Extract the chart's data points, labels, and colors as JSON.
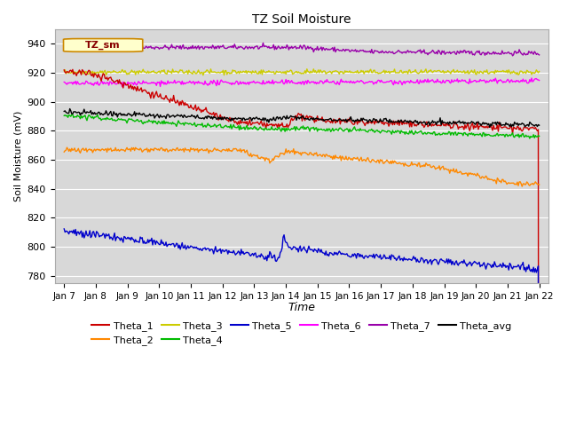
{
  "title": "TZ Soil Moisture",
  "xlabel": "Time",
  "ylabel": "Soil Moisture (mV)",
  "ylim": [
    775,
    950
  ],
  "background_color": "#d8d8d8",
  "legend_label": "TZ_sm",
  "x_tick_labels": [
    "Jan 7",
    "Jan 8",
    "Jan 9",
    "Jan 10",
    "Jan 11",
    "Jan 12",
    "Jan 13",
    "Jan 14",
    "Jan 15",
    "Jan 16",
    "Jan 17",
    "Jan 18",
    "Jan 19",
    "Jan 20",
    "Jan 21",
    "Jan 22"
  ],
  "grid_color": "#ffffff",
  "label_box_color": "#ffffcc",
  "label_box_text_color": "#880000",
  "label_box_border_color": "#cc8800",
  "series_colors": {
    "Theta_1": "#cc0000",
    "Theta_2": "#ff8800",
    "Theta_3": "#cccc00",
    "Theta_4": "#00bb00",
    "Theta_5": "#0000cc",
    "Theta_6": "#ff00ff",
    "Theta_7": "#9900aa",
    "Theta_avg": "#000000"
  },
  "yticks": [
    780,
    800,
    820,
    840,
    860,
    880,
    900,
    920,
    940
  ]
}
